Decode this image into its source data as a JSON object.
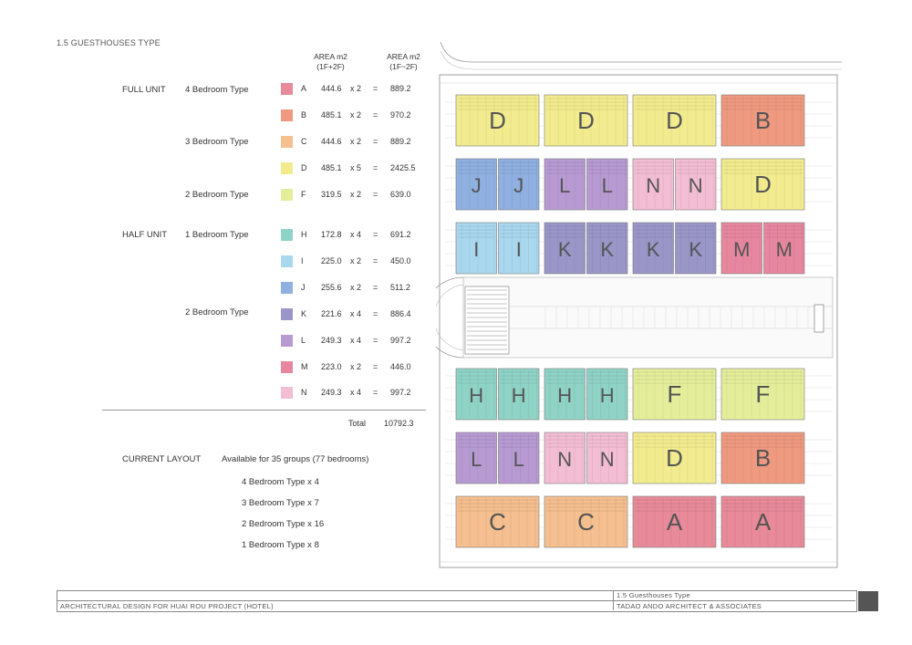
{
  "section_title": "1.5   GUESTHOUSES TYPE",
  "headers": {
    "area_1": "AREA m2",
    "area_1_sub": "(1F+2F)",
    "area_2": "AREA m2",
    "area_2_sub": "(1F~2F)"
  },
  "categories": {
    "full_unit": "FULL UNIT",
    "half_unit": "HALF UNIT"
  },
  "bedroom_types": {
    "b4": "4 Bedroom Type",
    "b3": "3 Bedroom Type",
    "b2a": "2 Bedroom Type",
    "b1": "1 Bedroom Type",
    "b2b": "2 Bedroom Type"
  },
  "units": [
    {
      "letter": "A",
      "area": "444.6",
      "mult": "x 2",
      "eq": "=",
      "total": "889.2",
      "color": "#e88a9a"
    },
    {
      "letter": "B",
      "area": "485.1",
      "mult": "x 2",
      "eq": "=",
      "total": "970.2",
      "color": "#ef9a80"
    },
    {
      "letter": "C",
      "area": "444.6",
      "mult": "x 2",
      "eq": "=",
      "total": "889.2",
      "color": "#f5bf8f"
    },
    {
      "letter": "D",
      "area": "485.1",
      "mult": "x 5",
      "eq": "=",
      "total": "2425.5",
      "color": "#f3ec8f"
    },
    {
      "letter": "F",
      "area": "319.5",
      "mult": "x 2",
      "eq": "=",
      "total": "639.0",
      "color": "#e4ee9a"
    },
    {
      "letter": "H",
      "area": "172.8",
      "mult": "x 4",
      "eq": "=",
      "total": "691.2",
      "color": "#8fd3c6"
    },
    {
      "letter": "I",
      "area": "225.0",
      "mult": "x 2",
      "eq": "=",
      "total": "450.0",
      "color": "#a9d7ee"
    },
    {
      "letter": "J",
      "area": "255.6",
      "mult": "x 2",
      "eq": "=",
      "total": "511.2",
      "color": "#8fb0e0"
    },
    {
      "letter": "K",
      "area": "221.6",
      "mult": "x 4",
      "eq": "=",
      "total": "886.4",
      "color": "#9a96c8"
    },
    {
      "letter": "L",
      "area": "249.3",
      "mult": "x 4",
      "eq": "=",
      "total": "997.2",
      "color": "#b79ad2"
    },
    {
      "letter": "M",
      "area": "223.0",
      "mult": "x 2",
      "eq": "=",
      "total": "446.0",
      "color": "#e7879f"
    },
    {
      "letter": "N",
      "area": "249.3",
      "mult": "x 4",
      "eq": "=",
      "total": "997.2",
      "color": "#f3bdd3"
    }
  ],
  "total_label": "Total",
  "total_value": "10792.3",
  "current_layout": {
    "label": "CURRENT LAYOUT",
    "desc": "Available for 35 groups (77 bedrooms)",
    "lines": [
      "4 Bedroom Type  x  4",
      "3 Bedroom Type  x  7",
      "2 Bedroom Type  x  16",
      "1 Bedroom Type  x  8"
    ]
  },
  "plan_blocks": [
    {
      "label": "D",
      "color": "#f3ec8f",
      "split": false
    },
    {
      "label": "D",
      "color": "#f3ec8f",
      "split": false
    },
    {
      "label": "D",
      "color": "#f3ec8f",
      "split": false
    },
    {
      "label": "B",
      "color": "#ef9a80",
      "split": false
    },
    {
      "label": "J",
      "color": "#8fb0e0",
      "split": true
    },
    {
      "label": "L",
      "color": "#b79ad2",
      "split": true
    },
    {
      "label": "N",
      "color": "#f3bdd3",
      "split": true
    },
    {
      "label": "D",
      "color": "#f3ec8f",
      "split": false
    },
    {
      "label": "I",
      "color": "#a9d7ee",
      "split": true
    },
    {
      "label": "K",
      "color": "#9a96c8",
      "split": true
    },
    {
      "label": "K",
      "color": "#9a96c8",
      "split": true
    },
    {
      "label": "M",
      "color": "#e7879f",
      "split": true
    },
    {
      "label": "H",
      "color": "#8fd3c6",
      "split": true
    },
    {
      "label": "H",
      "color": "#8fd3c6",
      "split": true
    },
    {
      "label": "F",
      "color": "#e4ee9a",
      "split": false
    },
    {
      "label": "F",
      "color": "#e4ee9a",
      "split": false
    },
    {
      "label": "L",
      "color": "#b79ad2",
      "split": true
    },
    {
      "label": "N",
      "color": "#f3bdd3",
      "split": true
    },
    {
      "label": "D",
      "color": "#f3ec8f",
      "split": false
    },
    {
      "label": "B",
      "color": "#ef9a80",
      "split": false
    },
    {
      "label": "C",
      "color": "#f5bf8f",
      "split": false
    },
    {
      "label": "C",
      "color": "#f5bf8f",
      "split": false
    },
    {
      "label": "A",
      "color": "#e88a9a",
      "split": false
    },
    {
      "label": "A",
      "color": "#e88a9a",
      "split": false
    }
  ],
  "footer": {
    "project": "ARCHITECTURAL DESIGN FOR HUAI ROU PROJECT (HOTEL)",
    "section": "1.5   Guesthouses Type",
    "firm": "TADAO ANDO ARCHITECT & ASSOCIATES"
  }
}
